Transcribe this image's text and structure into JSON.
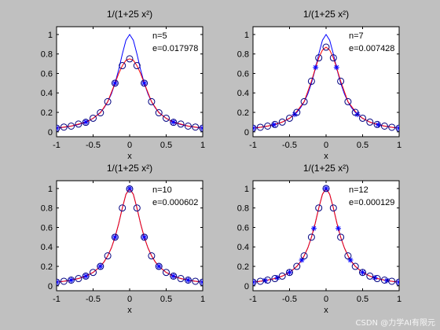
{
  "watermark": "CSDN @力学AI有限元",
  "colors": {
    "figure_bg": "#c0c0c0",
    "axes_bg": "#ffffff",
    "exact_curve": "#0000ff",
    "interp_curve": "#ff0000",
    "node_marker": "#0000ff",
    "eval_marker": "#000080"
  },
  "chart_data": [
    {
      "type": "line",
      "title": "1/(1+25 x²)",
      "xlabel": "x",
      "xlim": [
        -1,
        1
      ],
      "ylim": [
        -0.05,
        1.08
      ],
      "xticks": [
        -1,
        -0.5,
        0,
        0.5,
        1
      ],
      "xtick_labels": [
        "-1",
        "-0.5",
        "0",
        "0.5",
        "1"
      ],
      "yticks": [
        0,
        0.2,
        0.4,
        0.6,
        0.8,
        1
      ],
      "ytick_labels": [
        "0",
        "0.2",
        "0.4",
        "0.6",
        "0.8",
        "1"
      ],
      "annotation_lines": [
        "n=5",
        "e=0.017978"
      ],
      "series": [
        {
          "style": "line",
          "color": "#0000ff",
          "x": [
            -1,
            -0.9,
            -0.8,
            -0.7,
            -0.6,
            -0.5,
            -0.4,
            -0.35,
            -0.3,
            -0.25,
            -0.2,
            -0.15,
            -0.1,
            -0.05,
            0,
            0.05,
            0.1,
            0.15,
            0.2,
            0.25,
            0.3,
            0.35,
            0.4,
            0.5,
            0.6,
            0.7,
            0.8,
            0.9,
            1
          ],
          "y": [
            0.038,
            0.047,
            0.059,
            0.075,
            0.1,
            0.138,
            0.2,
            0.246,
            0.308,
            0.39,
            0.5,
            0.64,
            0.8,
            0.941,
            1,
            0.941,
            0.8,
            0.64,
            0.5,
            0.39,
            0.308,
            0.246,
            0.2,
            0.138,
            0.1,
            0.075,
            0.059,
            0.047,
            0.038
          ]
        },
        {
          "style": "line",
          "color": "#ff0000",
          "x": [
            -1,
            -0.9,
            -0.8,
            -0.7,
            -0.6,
            -0.5,
            -0.4,
            -0.3,
            -0.2,
            -0.15,
            -0.1,
            -0.05,
            0,
            0.05,
            0.1,
            0.15,
            0.2,
            0.3,
            0.4,
            0.5,
            0.6,
            0.7,
            0.8,
            0.9,
            1
          ],
          "y": [
            0.038,
            0.049,
            0.059,
            0.08,
            0.098,
            0.14,
            0.196,
            0.31,
            0.5,
            0.6,
            0.68,
            0.735,
            0.75,
            0.735,
            0.68,
            0.6,
            0.5,
            0.31,
            0.196,
            0.14,
            0.098,
            0.08,
            0.059,
            0.049,
            0.038
          ]
        },
        {
          "style": "markers",
          "marker": "star",
          "color": "#0000ff",
          "x": [
            -1,
            -0.6,
            -0.2,
            0.2,
            0.6,
            1
          ],
          "y": [
            0.038,
            0.1,
            0.5,
            0.5,
            0.1,
            0.038
          ]
        },
        {
          "style": "markers",
          "marker": "circle",
          "color": "#000080",
          "x": [
            -1,
            -0.9,
            -0.8,
            -0.7,
            -0.6,
            -0.5,
            -0.4,
            -0.3,
            -0.2,
            -0.1,
            0,
            0.1,
            0.2,
            0.3,
            0.4,
            0.5,
            0.6,
            0.7,
            0.8,
            0.9,
            1
          ],
          "y": [
            0.038,
            0.049,
            0.059,
            0.08,
            0.098,
            0.14,
            0.196,
            0.31,
            0.5,
            0.68,
            0.75,
            0.68,
            0.5,
            0.31,
            0.196,
            0.14,
            0.098,
            0.08,
            0.059,
            0.049,
            0.038
          ]
        }
      ]
    },
    {
      "type": "line",
      "title": "1/(1+25 x²)",
      "xlabel": "x",
      "xlim": [
        -1,
        1
      ],
      "ylim": [
        -0.05,
        1.08
      ],
      "xticks": [
        -1,
        -0.5,
        0,
        0.5,
        1
      ],
      "xtick_labels": [
        "-1",
        "-0.5",
        "0",
        "0.5",
        "1"
      ],
      "yticks": [
        0,
        0.2,
        0.4,
        0.6,
        0.8,
        1
      ],
      "ytick_labels": [
        "0",
        "0.2",
        "0.4",
        "0.6",
        "0.8",
        "1"
      ],
      "annotation_lines": [
        "n=7",
        "e=0.007428"
      ],
      "series": [
        {
          "style": "line",
          "color": "#0000ff",
          "x": [
            -1,
            -0.9,
            -0.8,
            -0.7,
            -0.6,
            -0.5,
            -0.4,
            -0.35,
            -0.3,
            -0.25,
            -0.2,
            -0.15,
            -0.1,
            -0.05,
            0,
            0.05,
            0.1,
            0.15,
            0.2,
            0.25,
            0.3,
            0.35,
            0.4,
            0.5,
            0.6,
            0.7,
            0.8,
            0.9,
            1
          ],
          "y": [
            0.038,
            0.047,
            0.059,
            0.075,
            0.1,
            0.138,
            0.2,
            0.246,
            0.308,
            0.39,
            0.5,
            0.64,
            0.8,
            0.941,
            1,
            0.941,
            0.8,
            0.64,
            0.5,
            0.39,
            0.308,
            0.246,
            0.2,
            0.138,
            0.1,
            0.075,
            0.059,
            0.047,
            0.038
          ]
        },
        {
          "style": "line",
          "color": "#ff0000",
          "x": [
            -1,
            -0.9,
            -0.8,
            -0.7,
            -0.6,
            -0.5,
            -0.43,
            -0.3,
            -0.2,
            -0.14,
            -0.1,
            -0.05,
            0,
            0.05,
            0.1,
            0.14,
            0.2,
            0.3,
            0.43,
            0.5,
            0.6,
            0.7,
            0.8,
            0.9,
            1
          ],
          "y": [
            0.038,
            0.047,
            0.059,
            0.076,
            0.1,
            0.14,
            0.18,
            0.31,
            0.52,
            0.67,
            0.76,
            0.84,
            0.87,
            0.84,
            0.76,
            0.67,
            0.52,
            0.31,
            0.18,
            0.14,
            0.1,
            0.076,
            0.059,
            0.047,
            0.038
          ]
        },
        {
          "style": "markers",
          "marker": "star",
          "color": "#0000ff",
          "x": [
            -1,
            -0.714,
            -0.429,
            -0.143,
            0.143,
            0.429,
            0.714,
            1
          ],
          "y": [
            0.038,
            0.073,
            0.179,
            0.662,
            0.662,
            0.179,
            0.073,
            0.038
          ]
        },
        {
          "style": "markers",
          "marker": "circle",
          "color": "#000080",
          "x": [
            -1,
            -0.9,
            -0.8,
            -0.7,
            -0.6,
            -0.5,
            -0.4,
            -0.3,
            -0.2,
            -0.1,
            0,
            0.1,
            0.2,
            0.3,
            0.4,
            0.5,
            0.6,
            0.7,
            0.8,
            0.9,
            1
          ],
          "y": [
            0.038,
            0.047,
            0.059,
            0.076,
            0.1,
            0.14,
            0.2,
            0.31,
            0.52,
            0.76,
            0.87,
            0.76,
            0.52,
            0.31,
            0.2,
            0.14,
            0.1,
            0.076,
            0.059,
            0.047,
            0.038
          ]
        }
      ]
    },
    {
      "type": "line",
      "title": "1/(1+25 x²)",
      "xlabel": "x",
      "xlim": [
        -1,
        1
      ],
      "ylim": [
        -0.05,
        1.08
      ],
      "xticks": [
        -1,
        -0.5,
        0,
        0.5,
        1
      ],
      "xtick_labels": [
        "-1",
        "-0.5",
        "0",
        "0.5",
        "1"
      ],
      "yticks": [
        0,
        0.2,
        0.4,
        0.6,
        0.8,
        1
      ],
      "ytick_labels": [
        "0",
        "0.2",
        "0.4",
        "0.6",
        "0.8",
        "1"
      ],
      "annotation_lines": [
        "n=10",
        "e=0.000602"
      ],
      "series": [
        {
          "style": "line",
          "color": "#0000ff",
          "x": [
            -1,
            -0.9,
            -0.8,
            -0.7,
            -0.6,
            -0.5,
            -0.4,
            -0.35,
            -0.3,
            -0.25,
            -0.2,
            -0.15,
            -0.1,
            -0.05,
            0,
            0.05,
            0.1,
            0.15,
            0.2,
            0.25,
            0.3,
            0.35,
            0.4,
            0.5,
            0.6,
            0.7,
            0.8,
            0.9,
            1
          ],
          "y": [
            0.038,
            0.047,
            0.059,
            0.075,
            0.1,
            0.138,
            0.2,
            0.246,
            0.308,
            0.39,
            0.5,
            0.64,
            0.8,
            0.941,
            1,
            0.941,
            0.8,
            0.64,
            0.5,
            0.39,
            0.308,
            0.246,
            0.2,
            0.138,
            0.1,
            0.075,
            0.059,
            0.047,
            0.038
          ]
        },
        {
          "style": "line",
          "color": "#ff0000",
          "x": [
            -1,
            -0.9,
            -0.8,
            -0.7,
            -0.6,
            -0.5,
            -0.4,
            -0.35,
            -0.3,
            -0.25,
            -0.2,
            -0.15,
            -0.1,
            -0.05,
            0,
            0.05,
            0.1,
            0.15,
            0.2,
            0.25,
            0.3,
            0.35,
            0.4,
            0.5,
            0.6,
            0.7,
            0.8,
            0.9,
            1
          ],
          "y": [
            0.038,
            0.047,
            0.059,
            0.075,
            0.1,
            0.138,
            0.2,
            0.246,
            0.308,
            0.39,
            0.5,
            0.64,
            0.8,
            0.94,
            0.996,
            0.94,
            0.8,
            0.64,
            0.5,
            0.39,
            0.308,
            0.246,
            0.2,
            0.138,
            0.1,
            0.075,
            0.059,
            0.047,
            0.038
          ]
        },
        {
          "style": "markers",
          "marker": "star",
          "color": "#0000ff",
          "x": [
            -1,
            -0.8,
            -0.6,
            -0.4,
            -0.2,
            0,
            0.2,
            0.4,
            0.6,
            0.8,
            1
          ],
          "y": [
            0.038,
            0.059,
            0.1,
            0.2,
            0.5,
            1,
            0.5,
            0.2,
            0.1,
            0.059,
            0.038
          ]
        },
        {
          "style": "markers",
          "marker": "circle",
          "color": "#000080",
          "x": [
            -1,
            -0.9,
            -0.8,
            -0.7,
            -0.6,
            -0.5,
            -0.4,
            -0.3,
            -0.2,
            -0.1,
            0,
            0.1,
            0.2,
            0.3,
            0.4,
            0.5,
            0.6,
            0.7,
            0.8,
            0.9,
            1
          ],
          "y": [
            0.038,
            0.047,
            0.059,
            0.075,
            0.1,
            0.138,
            0.2,
            0.308,
            0.5,
            0.8,
            0.996,
            0.8,
            0.5,
            0.308,
            0.2,
            0.138,
            0.1,
            0.075,
            0.059,
            0.047,
            0.038
          ]
        }
      ]
    },
    {
      "type": "line",
      "title": "1/(1+25 x²)",
      "xlabel": "x",
      "xlim": [
        -1,
        1
      ],
      "ylim": [
        -0.05,
        1.08
      ],
      "xticks": [
        -1,
        -0.5,
        0,
        0.5,
        1
      ],
      "xtick_labels": [
        "-1",
        "-0.5",
        "0",
        "0.5",
        "1"
      ],
      "yticks": [
        0,
        0.2,
        0.4,
        0.6,
        0.8,
        1
      ],
      "ytick_labels": [
        "0",
        "0.2",
        "0.4",
        "0.6",
        "0.8",
        "1"
      ],
      "annotation_lines": [
        "n=12",
        "e=0.000129"
      ],
      "series": [
        {
          "style": "line",
          "color": "#0000ff",
          "x": [
            -1,
            -0.9,
            -0.8,
            -0.7,
            -0.6,
            -0.5,
            -0.4,
            -0.35,
            -0.3,
            -0.25,
            -0.2,
            -0.15,
            -0.1,
            -0.05,
            0,
            0.05,
            0.1,
            0.15,
            0.2,
            0.25,
            0.3,
            0.35,
            0.4,
            0.5,
            0.6,
            0.7,
            0.8,
            0.9,
            1
          ],
          "y": [
            0.038,
            0.047,
            0.059,
            0.075,
            0.1,
            0.138,
            0.2,
            0.246,
            0.308,
            0.39,
            0.5,
            0.64,
            0.8,
            0.941,
            1,
            0.941,
            0.8,
            0.64,
            0.5,
            0.39,
            0.308,
            0.246,
            0.2,
            0.138,
            0.1,
            0.075,
            0.059,
            0.047,
            0.038
          ]
        },
        {
          "style": "line",
          "color": "#ff0000",
          "x": [
            -1,
            -0.9,
            -0.8,
            -0.7,
            -0.6,
            -0.5,
            -0.4,
            -0.35,
            -0.3,
            -0.25,
            -0.2,
            -0.15,
            -0.1,
            -0.05,
            0,
            0.05,
            0.1,
            0.15,
            0.2,
            0.25,
            0.3,
            0.35,
            0.4,
            0.5,
            0.6,
            0.7,
            0.8,
            0.9,
            1
          ],
          "y": [
            0.038,
            0.047,
            0.059,
            0.075,
            0.1,
            0.138,
            0.2,
            0.246,
            0.308,
            0.39,
            0.5,
            0.64,
            0.8,
            0.941,
            1,
            0.941,
            0.8,
            0.64,
            0.5,
            0.39,
            0.308,
            0.246,
            0.2,
            0.138,
            0.1,
            0.075,
            0.059,
            0.047,
            0.038
          ]
        },
        {
          "style": "markers",
          "marker": "star",
          "color": "#0000ff",
          "x": [
            -1,
            -0.833,
            -0.667,
            -0.5,
            -0.333,
            -0.167,
            0,
            0.167,
            0.333,
            0.5,
            0.667,
            0.833,
            1
          ],
          "y": [
            0.038,
            0.055,
            0.083,
            0.138,
            0.265,
            0.59,
            1,
            0.59,
            0.265,
            0.138,
            0.083,
            0.055,
            0.038
          ]
        },
        {
          "style": "markers",
          "marker": "circle",
          "color": "#000080",
          "x": [
            -1,
            -0.9,
            -0.8,
            -0.7,
            -0.6,
            -0.5,
            -0.4,
            -0.3,
            -0.2,
            -0.1,
            0,
            0.1,
            0.2,
            0.3,
            0.4,
            0.5,
            0.6,
            0.7,
            0.8,
            0.9,
            1
          ],
          "y": [
            0.038,
            0.047,
            0.059,
            0.075,
            0.1,
            0.138,
            0.2,
            0.308,
            0.5,
            0.8,
            1,
            0.8,
            0.5,
            0.308,
            0.2,
            0.138,
            0.1,
            0.075,
            0.059,
            0.047,
            0.038
          ]
        }
      ]
    }
  ]
}
